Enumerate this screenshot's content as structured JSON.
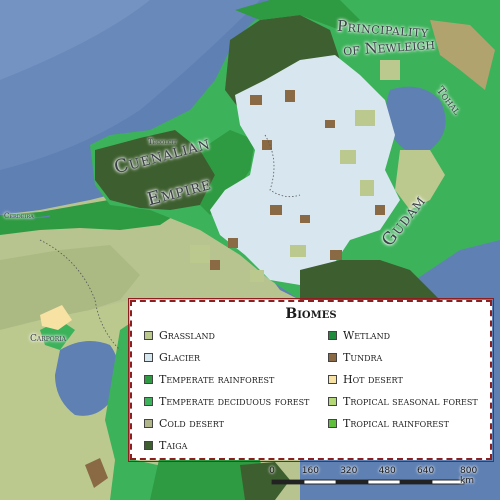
{
  "map": {
    "labels": {
      "empire_line1": "Cuenalian",
      "empire_line2": "Empire",
      "principality_line1": "Principality",
      "principality_line2": "of Newleigh",
      "gudam": "Gudam",
      "tohal": "Tohal",
      "tiny_1": "Tecolcit",
      "tiny_2": "Cerdeira",
      "carporia": "Carporia"
    }
  },
  "legend": {
    "title": "Biomes",
    "items": [
      {
        "label": "Grassland",
        "color": "#bcc98e"
      },
      {
        "label": "Wetland",
        "color": "#1f8b3c"
      },
      {
        "label": "Glacier",
        "color": "#d6e6ee"
      },
      {
        "label": "Tundra",
        "color": "#8a6a44"
      },
      {
        "label": "Temperate rainforest",
        "color": "#2e9a41"
      },
      {
        "label": "Hot desert",
        "color": "#f7e2a4"
      },
      {
        "label": "Temperate deciduous forest",
        "color": "#3cb25a"
      },
      {
        "label": "Tropical seasonal forest",
        "color": "#b3d977"
      },
      {
        "label": "Cold desert",
        "color": "#b0b58a"
      },
      {
        "label": "Tropical rainforest",
        "color": "#5fbf3c"
      },
      {
        "label": "Taiga",
        "color": "#3d5e2e"
      }
    ]
  },
  "scale": {
    "ticks": [
      "0",
      "160",
      "320",
      "480",
      "640",
      "800 km"
    ]
  }
}
